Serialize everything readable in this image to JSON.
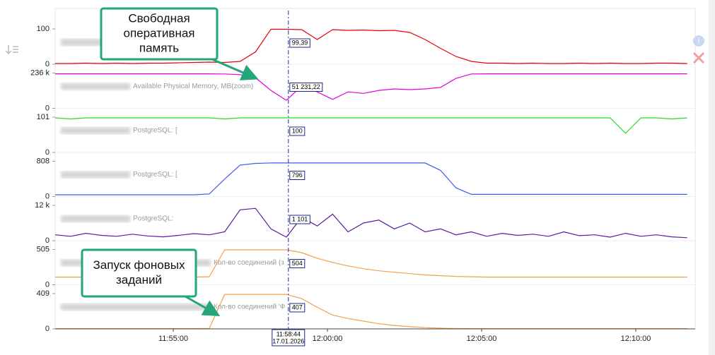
{
  "chart_data": [
    {
      "type": "line",
      "ylim": [
        0,
        100
      ],
      "yticks": [
        0,
        100
      ],
      "series": [
        {
          "color": "#e8000b",
          "values": [
            2,
            2,
            3,
            2,
            3,
            2,
            3,
            3,
            4,
            5,
            6,
            5,
            8,
            35,
            99,
            99,
            98,
            70,
            98,
            96,
            97,
            95,
            96,
            90,
            70,
            45,
            22,
            8,
            3,
            3,
            2,
            3,
            2,
            2,
            3,
            2,
            3,
            2,
            2,
            3,
            3,
            2
          ]
        }
      ],
      "cursor_value": {
        "value": 99.39,
        "label": "99,39"
      }
    },
    {
      "type": "line",
      "ylim": [
        0,
        236000
      ],
      "yticks": [
        0,
        {
          "value": 236000,
          "label": "236 k"
        }
      ],
      "series": [
        {
          "name": "Available Physical Memory, MB(zoom)",
          "color": "#e000e0",
          "values": [
            231000,
            231000,
            231000,
            231000,
            231000,
            231000,
            231000,
            231000,
            231000,
            231000,
            231000,
            230000,
            225000,
            205000,
            120000,
            54000,
            150000,
            110000,
            60000,
            110000,
            100000,
            120000,
            130000,
            125000,
            130000,
            140000,
            200000,
            230000,
            231000,
            231000,
            231000,
            231000,
            231000,
            231000,
            231000,
            231000,
            231000,
            231000,
            231000,
            231000,
            231000,
            231000
          ]
        }
      ],
      "cursor_value": {
        "value": 51231.22,
        "label": "51 231,22"
      }
    },
    {
      "type": "line",
      "ylim": [
        0,
        101
      ],
      "yticks": [
        0,
        101
      ],
      "series": [
        {
          "name": "PostgreSQL: [",
          "color": "#22dd22",
          "values": [
            99,
            96,
            99,
            99,
            99,
            99,
            99,
            99,
            99,
            99,
            99,
            96,
            99,
            99,
            99,
            99,
            99,
            99,
            99,
            99,
            99,
            99,
            99,
            99,
            99,
            99,
            99,
            99,
            99,
            99,
            99,
            99,
            99,
            99,
            99,
            99,
            99,
            55,
            99,
            99,
            96,
            99
          ]
        }
      ],
      "cursor_value": {
        "value": 100
      }
    },
    {
      "type": "line",
      "ylim": [
        0,
        808
      ],
      "yticks": [
        0,
        808
      ],
      "series": [
        {
          "name": "PostgreSQL: [",
          "color": "#3b5cf0",
          "values": [
            40,
            40,
            40,
            40,
            40,
            40,
            40,
            40,
            40,
            40,
            60,
            400,
            720,
            760,
            770,
            770,
            770,
            770,
            770,
            770,
            770,
            770,
            770,
            770,
            770,
            600,
            200,
            50,
            50,
            50,
            50,
            50,
            50,
            50,
            50,
            50,
            50,
            50,
            50,
            50,
            50,
            50
          ]
        }
      ],
      "cursor_value": {
        "value": 796
      }
    },
    {
      "type": "line",
      "ylim": [
        0,
        12000
      ],
      "yticks": [
        0,
        {
          "value": 12000,
          "label": "12 k"
        }
      ],
      "series": [
        {
          "name": "PostgreSQL:",
          "color": "#5b1a9e",
          "values": [
            2000,
            1500,
            2500,
            1800,
            1500,
            2200,
            1600,
            1300,
            1800,
            2400,
            2000,
            3000,
            10500,
            11000,
            4000,
            1200,
            8000,
            5000,
            9000,
            3000,
            6000,
            7000,
            4000,
            6000,
            3000,
            4000,
            2000,
            3000,
            1500,
            2500,
            1800,
            2200,
            1500,
            3000,
            1700,
            2000,
            1200,
            2500,
            1500,
            2000,
            1300,
            1000
          ]
        }
      ],
      "cursor_value": {
        "value": 1101,
        "label": "1 101"
      }
    },
    {
      "type": "line",
      "ylim": [
        0,
        505
      ],
      "yticks": [
        0,
        505
      ],
      "series": [
        {
          "name": "Кол-во соединений (з",
          "color": "#f0a050",
          "values": [
            110,
            110,
            110,
            110,
            110,
            110,
            110,
            110,
            110,
            110,
            115,
            500,
            500,
            500,
            500,
            500,
            460,
            380,
            320,
            270,
            230,
            200,
            180,
            160,
            140,
            130,
            120,
            115,
            110,
            110,
            110,
            110,
            110,
            110,
            110,
            110,
            110,
            110,
            110,
            110,
            110,
            110
          ]
        }
      ],
      "cursor_value": {
        "value": 504
      }
    },
    {
      "type": "line",
      "ylim": [
        0,
        409
      ],
      "yticks": [
        0,
        409
      ],
      "series": [
        {
          "name": "Кол-во соединений 'Ф",
          "color": "#f0a050",
          "values": [
            3,
            3,
            3,
            3,
            3,
            3,
            3,
            3,
            3,
            3,
            5,
            400,
            400,
            400,
            400,
            400,
            350,
            250,
            160,
            120,
            90,
            60,
            40,
            25,
            15,
            8,
            4,
            3,
            3,
            3,
            3,
            3,
            3,
            3,
            3,
            3,
            3,
            3,
            3,
            3,
            3,
            3
          ]
        }
      ],
      "cursor_value": {
        "value": 407
      }
    }
  ],
  "x_axis": {
    "x": [
      "11:51:10",
      "11:51:40",
      "11:52:10",
      "11:52:40",
      "11:53:10",
      "11:53:40",
      "11:54:10",
      "11:54:40",
      "11:55:10",
      "11:55:40",
      "11:56:10",
      "11:56:40",
      "11:57:10",
      "11:57:40",
      "11:58:10",
      "11:58:40",
      "11:59:10",
      "11:59:40",
      "12:00:10",
      "12:00:40",
      "12:01:10",
      "12:01:40",
      "12:02:10",
      "12:02:40",
      "12:03:10",
      "12:03:40",
      "12:04:10",
      "12:04:40",
      "12:05:10",
      "12:05:40",
      "12:06:10",
      "12:06:40",
      "12:07:10",
      "12:07:40",
      "12:08:10",
      "12:08:40",
      "12:09:10",
      "12:09:40",
      "12:10:10",
      "12:10:40",
      "12:11:10",
      "12:11:40"
    ],
    "xticks": [
      "11:55:00",
      "12:00:00",
      "12:05:00",
      "12:10:00"
    ]
  },
  "cursor": {
    "time": "11:58:44",
    "date": "17.01.2026"
  },
  "annotations": [
    {
      "lines": [
        "Свободная",
        "оперативная",
        "память"
      ]
    },
    {
      "lines": [
        "Запуск фоновых",
        "заданий"
      ]
    }
  ]
}
